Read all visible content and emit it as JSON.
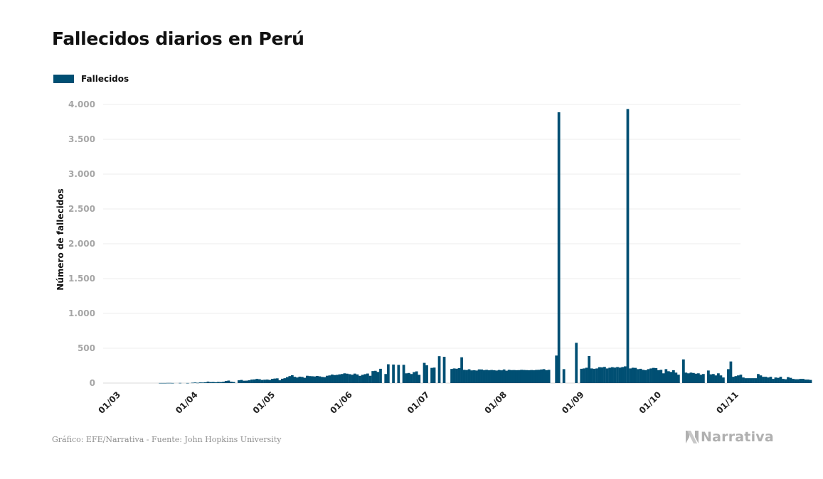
{
  "title": "Fallecidos diarios en Perú",
  "legend": {
    "label": "Fallecidos",
    "color": "#004f73"
  },
  "source_text": "Gráfico: EFE/Narrativa - Fuente: John Hopkins University",
  "brand": {
    "name": "Narrativa",
    "color": "#b0b0b0"
  },
  "chart_data": {
    "type": "bar",
    "title": "Fallecidos diarios en Perú",
    "xlabel": "",
    "ylabel": "Número de fallecidos",
    "ylim": [
      0,
      4000
    ],
    "yticks": [
      0,
      500,
      1000,
      1500,
      2000,
      2500,
      3000,
      3500,
      4000
    ],
    "ytick_labels": [
      "0",
      "500",
      "1.000",
      "1.500",
      "2.000",
      "2.500",
      "3.000",
      "3.500",
      "4.000"
    ],
    "xtick_labels": [
      "01/03",
      "01/04",
      "01/05",
      "01/06",
      "01/07",
      "01/08",
      "01/09",
      "01/10",
      "01/11"
    ],
    "grid": true,
    "legend_position": "top-left",
    "color": "#004f73",
    "series": [
      {
        "name": "Fallecidos",
        "start_date": "2020-03-01",
        "values": [
          0,
          0,
          0,
          0,
          0,
          0,
          0,
          0,
          0,
          0,
          0,
          0,
          0,
          0,
          0,
          0,
          0,
          0,
          1,
          1,
          1,
          2,
          2,
          1,
          0,
          0,
          2,
          0,
          0,
          1,
          0,
          5,
          8,
          4,
          9,
          8,
          11,
          21,
          14,
          15,
          12,
          16,
          14,
          19,
          30,
          36,
          20,
          15,
          0,
          40,
          45,
          34,
          35,
          40,
          50,
          52,
          60,
          55,
          45,
          48,
          50,
          45,
          60,
          65,
          68,
          40,
          62,
          70,
          85,
          100,
          112,
          90,
          80,
          92,
          88,
          76,
          105,
          100,
          98,
          95,
          102,
          96,
          88,
          85,
          105,
          110,
          122,
          115,
          118,
          125,
          130,
          140,
          135,
          128,
          120,
          136,
          124,
          104,
          118,
          128,
          137,
          105,
          172,
          176,
          160,
          205,
          0,
          130,
          270,
          0,
          266,
          0,
          261,
          0,
          262,
          140,
          145,
          130,
          157,
          168,
          118,
          0,
          290,
          255,
          0,
          218,
          222,
          0,
          386,
          0,
          377,
          0,
          0,
          203,
          210,
          206,
          215,
          370,
          190,
          187,
          198,
          182,
          185,
          180,
          196,
          195,
          186,
          190,
          184,
          188,
          185,
          180,
          188,
          183,
          195,
          178,
          190,
          186,
          187,
          185,
          186,
          190,
          188,
          186,
          184,
          187,
          185,
          189,
          190,
          195,
          200,
          185,
          190,
          0,
          0,
          395,
          3888,
          0,
          200,
          0,
          0,
          0,
          0,
          578,
          0,
          205,
          210,
          220,
          388,
          210,
          205,
          210,
          228,
          225,
          232,
          210,
          220,
          228,
          222,
          230,
          222,
          230,
          240,
          3935,
          210,
          220,
          218,
          200,
          205,
          190,
          185,
          200,
          210,
          218,
          215,
          185,
          190,
          140,
          200,
          170,
          160,
          185,
          150,
          120,
          0,
          340,
          150,
          140,
          150,
          145,
          135,
          140,
          120,
          130,
          0,
          180,
          125,
          130,
          110,
          140,
          110,
          80,
          0,
          200,
          310,
          90,
          100,
          110,
          120,
          80,
          70,
          70,
          70,
          70,
          70,
          130,
          110,
          90,
          90,
          80,
          90,
          60,
          80,
          75,
          90,
          60,
          55,
          85,
          75,
          60,
          55,
          55,
          60,
          60,
          50,
          50,
          45
        ]
      }
    ]
  }
}
